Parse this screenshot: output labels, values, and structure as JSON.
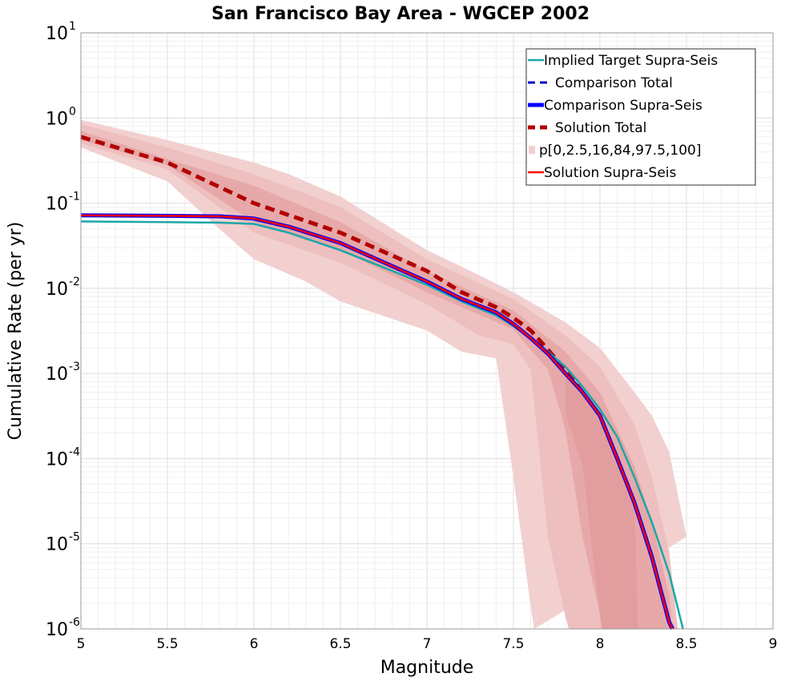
{
  "chart_data": {
    "type": "line",
    "title": "San Francisco Bay Area - WGCEP 2002",
    "xlabel": "Magnitude",
    "ylabel": "Cumulative Rate (per yr)",
    "xlim": [
      5,
      9
    ],
    "ylim": [
      1e-06,
      10
    ],
    "yscale": "log",
    "grid": true,
    "legend_position": "top-right",
    "x_ticks": [
      "5",
      "5.5",
      "6",
      "6.5",
      "7",
      "7.5",
      "8",
      "8.5",
      "9"
    ],
    "y_ticks": [
      {
        "value": 1e-06,
        "base": "10",
        "exp": "-6"
      },
      {
        "value": 1e-05,
        "base": "10",
        "exp": "-5"
      },
      {
        "value": 0.0001,
        "base": "10",
        "exp": "-4"
      },
      {
        "value": 0.001,
        "base": "10",
        "exp": "-3"
      },
      {
        "value": 0.01,
        "base": "10",
        "exp": "-2"
      },
      {
        "value": 0.1,
        "base": "10",
        "exp": "-1"
      },
      {
        "value": 1,
        "base": "10",
        "exp": "0"
      },
      {
        "value": 10,
        "base": "10",
        "exp": "1"
      }
    ],
    "legend": [
      {
        "label": "Implied Target Supra-Seis",
        "color": "#1aa7a7",
        "style": "solid",
        "width": 2.5
      },
      {
        "label": "Comparison Total",
        "color": "#0000cc",
        "style": "dashed",
        "width": 3
      },
      {
        "label": "Comparison Supra-Seis",
        "color": "#0000ff",
        "style": "solid",
        "width": 5
      },
      {
        "label": "Solution Total",
        "color": "#b30000",
        "style": "dashed",
        "width": 5
      },
      {
        "label": "p[0,2.5,16,84,97.5,100]",
        "color": "#f2d0d0",
        "style": "band",
        "width": 8
      },
      {
        "label": "Solution Supra-Seis",
        "color": "#ff0000",
        "style": "solid",
        "width": 2.5
      }
    ],
    "bands": [
      {
        "name": "p0-p100",
        "color": "#f2d0d0",
        "upper": [
          [
            5,
            0.95
          ],
          [
            5.5,
            0.55
          ],
          [
            6,
            0.3
          ],
          [
            6.2,
            0.22
          ],
          [
            6.5,
            0.12
          ],
          [
            6.8,
            0.05
          ],
          [
            7,
            0.028
          ],
          [
            7.2,
            0.018
          ],
          [
            7.5,
            0.009
          ],
          [
            7.8,
            0.004
          ],
          [
            8,
            0.002
          ],
          [
            8.2,
            0.0006
          ],
          [
            8.3,
            0.00032
          ],
          [
            8.4,
            0.00012
          ],
          [
            8.5,
            1.2e-05
          ]
        ],
        "lower": [
          [
            5,
            0.45
          ],
          [
            5.5,
            0.18
          ],
          [
            5.8,
            0.05
          ],
          [
            6,
            0.022
          ],
          [
            6.3,
            0.012
          ],
          [
            6.5,
            0.007
          ],
          [
            7,
            0.0032
          ],
          [
            7.2,
            0.0018
          ],
          [
            7.4,
            0.0015
          ],
          [
            7.5,
            6e-05
          ],
          [
            7.6,
            1.8e-06
          ],
          [
            7.62,
            1e-06
          ]
        ]
      },
      {
        "name": "p2.5-p97.5",
        "color": "#eebfbf",
        "upper": [
          [
            5,
            0.85
          ],
          [
            5.5,
            0.45
          ],
          [
            6,
            0.22
          ],
          [
            6.5,
            0.09
          ],
          [
            7,
            0.022
          ],
          [
            7.5,
            0.0075
          ],
          [
            7.8,
            0.0028
          ],
          [
            8,
            0.0012
          ],
          [
            8.2,
            0.00025
          ],
          [
            8.3,
            6e-05
          ],
          [
            8.4,
            8e-06
          ],
          [
            8.45,
            1e-06
          ]
        ],
        "lower": [
          [
            5,
            0.5
          ],
          [
            5.5,
            0.25
          ],
          [
            6,
            0.045
          ],
          [
            6.5,
            0.02
          ],
          [
            7,
            0.0065
          ],
          [
            7.3,
            0.0028
          ],
          [
            7.5,
            0.0022
          ],
          [
            7.6,
            0.0011
          ],
          [
            7.7,
            1.2e-05
          ],
          [
            7.8,
            1.4e-06
          ],
          [
            7.82,
            1e-06
          ]
        ]
      },
      {
        "name": "p16-p84",
        "color": "#e6a8a8",
        "upper": [
          [
            5,
            0.7
          ],
          [
            5.5,
            0.33
          ],
          [
            6,
            0.16
          ],
          [
            6.5,
            0.06
          ],
          [
            7,
            0.016
          ],
          [
            7.5,
            0.0055
          ],
          [
            7.8,
            0.0018
          ],
          [
            8,
            0.0006
          ],
          [
            8.2,
            8e-05
          ],
          [
            8.3,
            1.8e-05
          ],
          [
            8.4,
            2.5e-06
          ],
          [
            8.42,
            1e-06
          ]
        ],
        "lower": [
          [
            5,
            0.55
          ],
          [
            5.5,
            0.28
          ],
          [
            6,
            0.06
          ],
          [
            6.5,
            0.028
          ],
          [
            7,
            0.009
          ],
          [
            7.5,
            0.0033
          ],
          [
            7.7,
            0.0011
          ],
          [
            7.8,
            0.00022
          ],
          [
            7.9,
            1.2e-05
          ],
          [
            8,
            1.5e-06
          ],
          [
            8.01,
            1e-06
          ]
        ]
      },
      {
        "name": "core",
        "color": "#e29e9e",
        "upper": [
          [
            7.8,
            0.001
          ],
          [
            8,
            0.00035
          ],
          [
            8.1,
            0.00012
          ],
          [
            8.2,
            3.5e-05
          ],
          [
            8.22,
            1e-06
          ]
        ],
        "lower": [
          [
            7.8,
            0.00035
          ],
          [
            7.9,
            8e-05
          ],
          [
            8,
            1.5e-06
          ],
          [
            8.01,
            1e-06
          ]
        ]
      }
    ],
    "series": [
      {
        "name": "Solution Total",
        "color": "#b30000",
        "style": "dashed",
        "width": 5,
        "points": [
          [
            5,
            0.6
          ],
          [
            5.5,
            0.3
          ],
          [
            6,
            0.1
          ],
          [
            6.5,
            0.045
          ],
          [
            7,
            0.016
          ],
          [
            7.2,
            0.009
          ],
          [
            7.4,
            0.006
          ],
          [
            7.5,
            0.0045
          ],
          [
            7.6,
            0.0032
          ],
          [
            7.7,
            0.0019
          ],
          [
            7.8,
            0.0011
          ],
          [
            7.9,
            0.0006
          ],
          [
            8,
            0.00032
          ],
          [
            8.1,
            0.0001
          ],
          [
            8.2,
            3e-05
          ],
          [
            8.3,
            7e-06
          ],
          [
            8.4,
            1.2e-06
          ],
          [
            8.42,
            1e-06
          ]
        ]
      },
      {
        "name": "Implied Target Supra-Seis",
        "color": "#1aa7a7",
        "style": "solid",
        "width": 2.5,
        "points": [
          [
            5,
            0.061
          ],
          [
            5.5,
            0.06
          ],
          [
            5.8,
            0.059
          ],
          [
            6,
            0.057
          ],
          [
            6.2,
            0.045
          ],
          [
            6.5,
            0.028
          ],
          [
            7,
            0.011
          ],
          [
            7.2,
            0.007
          ],
          [
            7.4,
            0.0048
          ],
          [
            7.5,
            0.0036
          ],
          [
            7.6,
            0.0026
          ],
          [
            7.7,
            0.0018
          ],
          [
            7.8,
            0.0012
          ],
          [
            7.9,
            0.0007
          ],
          [
            8,
            0.00038
          ],
          [
            8.1,
            0.00018
          ],
          [
            8.2,
            6e-05
          ],
          [
            8.3,
            1.8e-05
          ],
          [
            8.4,
            4.5e-06
          ],
          [
            8.48,
            1e-06
          ]
        ]
      },
      {
        "name": "Comparison Total",
        "color": "#0000cc",
        "style": "dashed",
        "width": 3,
        "points": [
          [
            5,
            0.072
          ],
          [
            5.5,
            0.071
          ],
          [
            5.8,
            0.07
          ],
          [
            6,
            0.066
          ],
          [
            6.2,
            0.053
          ],
          [
            6.5,
            0.034
          ],
          [
            7,
            0.012
          ],
          [
            7.2,
            0.0075
          ],
          [
            7.4,
            0.0052
          ],
          [
            7.5,
            0.0038
          ],
          [
            7.6,
            0.0026
          ],
          [
            7.7,
            0.0017
          ],
          [
            7.8,
            0.001
          ],
          [
            7.9,
            0.0006
          ],
          [
            8,
            0.00032
          ],
          [
            8.1,
            0.0001
          ],
          [
            8.2,
            3e-05
          ],
          [
            8.3,
            7e-06
          ],
          [
            8.4,
            1.2e-06
          ],
          [
            8.42,
            1e-06
          ]
        ]
      },
      {
        "name": "Comparison Supra-Seis",
        "color": "#0000ff",
        "style": "solid",
        "width": 5,
        "points": [
          [
            5,
            0.072
          ],
          [
            5.5,
            0.071
          ],
          [
            5.8,
            0.07
          ],
          [
            6,
            0.066
          ],
          [
            6.2,
            0.053
          ],
          [
            6.5,
            0.034
          ],
          [
            7,
            0.012
          ],
          [
            7.2,
            0.0075
          ],
          [
            7.4,
            0.0052
          ],
          [
            7.5,
            0.0038
          ],
          [
            7.6,
            0.0026
          ],
          [
            7.7,
            0.0017
          ],
          [
            7.8,
            0.001
          ],
          [
            7.9,
            0.0006
          ],
          [
            8,
            0.00032
          ],
          [
            8.1,
            0.0001
          ],
          [
            8.2,
            3e-05
          ],
          [
            8.3,
            7e-06
          ],
          [
            8.4,
            1.2e-06
          ],
          [
            8.42,
            1e-06
          ]
        ]
      },
      {
        "name": "Solution Supra-Seis",
        "color": "#ff0000",
        "style": "solid",
        "width": 2.5,
        "points": [
          [
            5,
            0.072
          ],
          [
            5.5,
            0.071
          ],
          [
            5.8,
            0.07
          ],
          [
            6,
            0.066
          ],
          [
            6.2,
            0.053
          ],
          [
            6.5,
            0.034
          ],
          [
            7,
            0.012
          ],
          [
            7.2,
            0.0075
          ],
          [
            7.4,
            0.0052
          ],
          [
            7.5,
            0.0038
          ],
          [
            7.6,
            0.0026
          ],
          [
            7.7,
            0.0017
          ],
          [
            7.8,
            0.001
          ],
          [
            7.9,
            0.0006
          ],
          [
            8,
            0.00032
          ],
          [
            8.1,
            0.0001
          ],
          [
            8.2,
            3e-05
          ],
          [
            8.3,
            7e-06
          ],
          [
            8.4,
            1.2e-06
          ],
          [
            8.42,
            1e-06
          ]
        ]
      }
    ]
  }
}
